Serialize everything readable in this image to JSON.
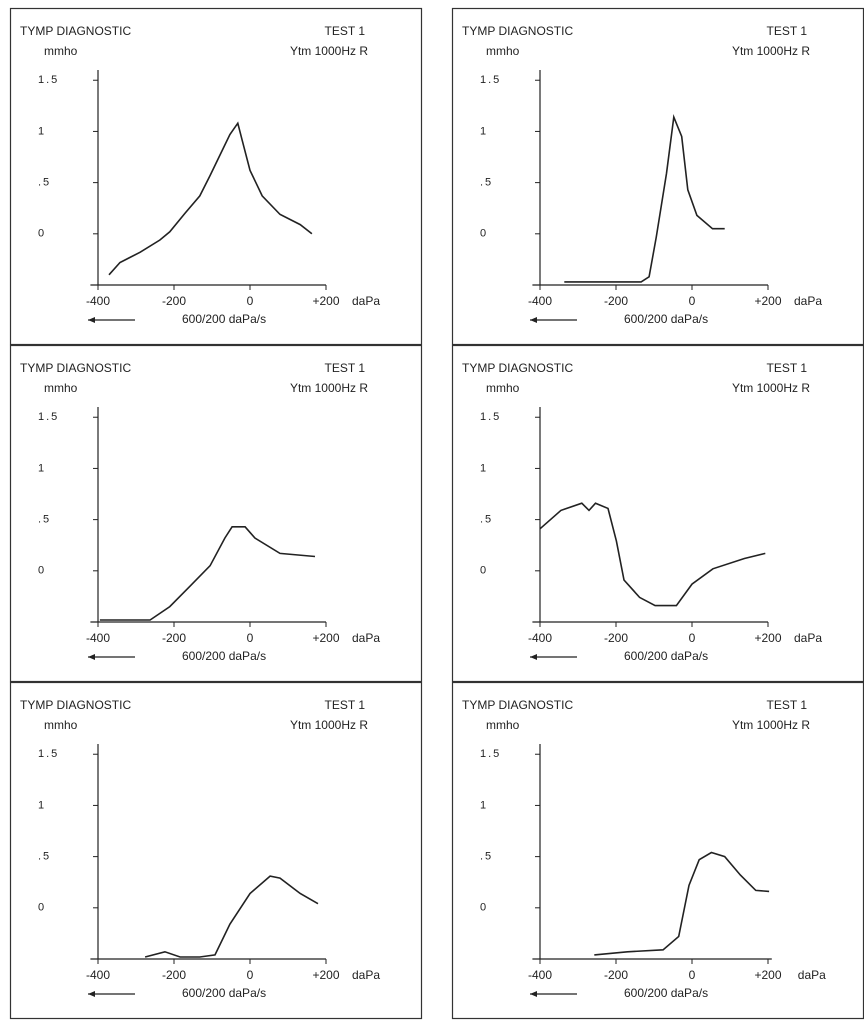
{
  "chart_data": [
    {
      "type": "line",
      "title": "TYMP DIAGNOSTIC",
      "test": "TEST 1",
      "y_label": "mmho",
      "measure": "Ytm 1000Hz R",
      "x_unit": "daPa",
      "rate": "600/200 daPa/s",
      "x": [
        -371,
        -342,
        -289,
        -237,
        -211,
        -171,
        -132,
        -105,
        -79,
        -53,
        -32,
        -21,
        0,
        32,
        79,
        132,
        163
      ],
      "values": [
        -0.4,
        -0.28,
        -0.18,
        -0.06,
        0.02,
        0.2,
        0.37,
        0.57,
        0.77,
        0.97,
        1.08,
        0.92,
        0.62,
        0.37,
        0.19,
        0.09,
        0.0
      ],
      "color": "#222",
      "xlim": [
        -420,
        200
      ],
      "xticks": [
        -400,
        -200,
        0,
        {
          "value": 200,
          "label": "+200"
        }
      ],
      "ylim": [
        -0.5,
        1.6
      ],
      "yticks": [
        0,
        {
          "value": 0.5,
          "label": ".5"
        },
        1,
        1.5
      ]
    },
    {
      "type": "line",
      "title": "TYMP DIAGNOSTIC",
      "test": "TEST 1",
      "y_label": "mmho",
      "measure": "Ytm 1000Hz R",
      "x_unit": "daPa",
      "rate": "600/200 daPa/s",
      "x": [
        -336,
        -134,
        -113,
        -94,
        -67,
        -48,
        -27,
        -11,
        13,
        54,
        86
      ],
      "values": [
        -0.47,
        -0.47,
        -0.42,
        -0.03,
        0.59,
        1.14,
        0.95,
        0.43,
        0.18,
        0.05,
        0.05
      ],
      "color": "#222",
      "xlim": [
        -420,
        200
      ],
      "xticks": [
        -400,
        -200,
        0,
        {
          "value": 200,
          "label": "+200"
        }
      ],
      "ylim": [
        -0.5,
        1.6
      ],
      "yticks": [
        0,
        {
          "value": 0.5,
          "label": ".5"
        },
        1,
        1.5
      ]
    },
    {
      "type": "line",
      "title": "TYMP DIAGNOSTIC",
      "test": "TEST 1",
      "y_label": "mmho",
      "measure": "Ytm 1000Hz R",
      "x_unit": "daPa",
      "rate": "600/200 daPa/s",
      "x": [
        -395,
        -263,
        -211,
        -158,
        -105,
        -66,
        -47,
        -13,
        13,
        79,
        171
      ],
      "values": [
        -0.48,
        -0.48,
        -0.35,
        -0.15,
        0.05,
        0.32,
        0.43,
        0.43,
        0.32,
        0.17,
        0.14
      ],
      "color": "#222",
      "xlim": [
        -420,
        200
      ],
      "xticks": [
        -400,
        -200,
        0,
        {
          "value": 200,
          "label": "+200"
        }
      ],
      "ylim": [
        -0.5,
        1.6
      ],
      "yticks": [
        0,
        {
          "value": 0.5,
          "label": ".5"
        },
        1,
        1.5
      ]
    },
    {
      "type": "line",
      "title": "TYMP DIAGNOSTIC",
      "test": "TEST 1",
      "y_label": "mmho",
      "measure": "Ytm 1000Hz R",
      "x_unit": "daPa",
      "rate": "600/200 daPa/s",
      "x": [
        -400,
        -345,
        -290,
        -271,
        -254,
        -221,
        -199,
        -179,
        -138,
        -97,
        -41,
        0,
        55,
        138,
        193
      ],
      "values": [
        0.41,
        0.59,
        0.66,
        0.59,
        0.66,
        0.61,
        0.29,
        -0.09,
        -0.26,
        -0.34,
        -0.34,
        -0.13,
        0.02,
        0.12,
        0.17
      ],
      "color": "#222",
      "xlim": [
        -420,
        200
      ],
      "xticks": [
        -400,
        -200,
        0,
        {
          "value": 200,
          "label": "+200"
        }
      ],
      "ylim": [
        -0.5,
        1.6
      ],
      "yticks": [
        0,
        {
          "value": 0.5,
          "label": ".5"
        },
        1,
        1.5
      ]
    },
    {
      "type": "line",
      "title": "TYMP DIAGNOSTIC",
      "test": "TEST 1",
      "y_label": "mmho",
      "measure": "Ytm 1000Hz R",
      "x_unit": "daPa",
      "rate": "600/200 daPa/s",
      "x": [
        -276,
        -224,
        -184,
        -132,
        -92,
        -53,
        0,
        53,
        79,
        132,
        179
      ],
      "values": [
        -0.48,
        -0.43,
        -0.48,
        -0.48,
        -0.46,
        -0.16,
        0.14,
        0.31,
        0.29,
        0.14,
        0.04
      ],
      "color": "#222",
      "xlim": [
        -420,
        200
      ],
      "xticks": [
        -400,
        -200,
        0,
        {
          "value": 200,
          "label": "+200"
        }
      ],
      "ylim": [
        -0.5,
        1.6
      ],
      "yticks": [
        0,
        {
          "value": 0.5,
          "label": ".5"
        },
        1,
        1.5
      ]
    },
    {
      "type": "line",
      "title": "TYMP DIAGNOSTIC",
      "test": "TEST 1",
      "y_label": "mmho",
      "measure": "Ytm 1000Hz R",
      "x_unit": "daPa",
      "rate": "600/200 daPa/s",
      "x": [
        -257,
        -170,
        -76,
        -35,
        -8,
        19,
        51,
        86,
        127,
        168,
        203
      ],
      "values": [
        -0.46,
        -0.43,
        -0.41,
        -0.28,
        0.22,
        0.47,
        0.54,
        0.5,
        0.32,
        0.17,
        0.16
      ],
      "color": "#222",
      "xlim": [
        -420,
        210
      ],
      "xticks": [
        -400,
        -200,
        0,
        {
          "value": 200,
          "label": "+200"
        }
      ],
      "ylim": [
        -0.5,
        1.6
      ],
      "yticks": [
        0,
        {
          "value": 0.5,
          "label": ".5"
        },
        1,
        1.5
      ]
    }
  ]
}
